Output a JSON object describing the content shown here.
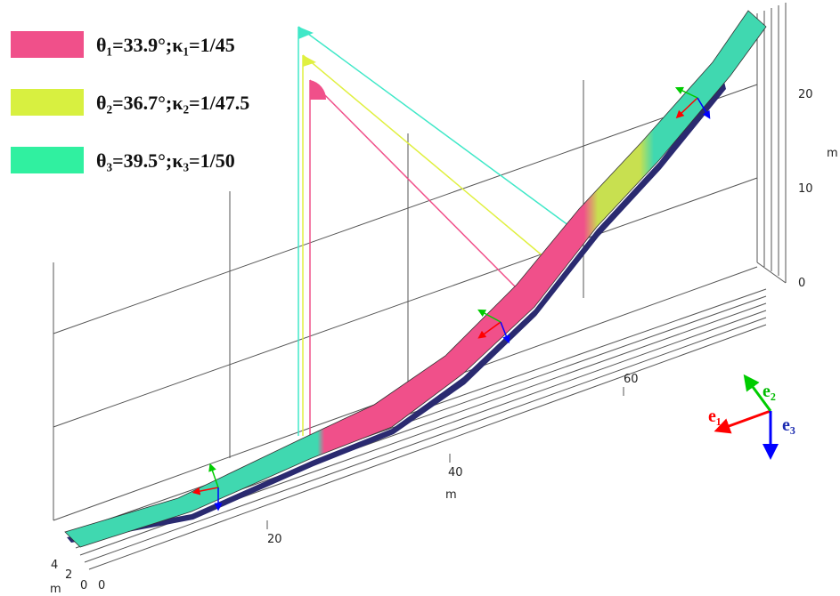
{
  "legend": [
    {
      "label": "θ₁=33.9°;κ₁=1/45",
      "color": "#f0508a"
    },
    {
      "label": "θ₂=36.7°;κ₂=1/47.5",
      "color": "#d8f040"
    },
    {
      "label": "θ₃=39.5°;κ₃=1/50",
      "color": "#30f0a0"
    }
  ],
  "axes": {
    "x": {
      "ticks": [
        "0",
        "20",
        "40",
        "60"
      ],
      "unit": "m"
    },
    "y": {
      "ticks": [
        "0",
        "2",
        "4"
      ],
      "unit": "m"
    },
    "z": {
      "ticks": [
        "0",
        "10",
        "20"
      ],
      "unit": "m"
    }
  },
  "triad": [
    "e₁",
    "e₂",
    "e₃"
  ]
}
